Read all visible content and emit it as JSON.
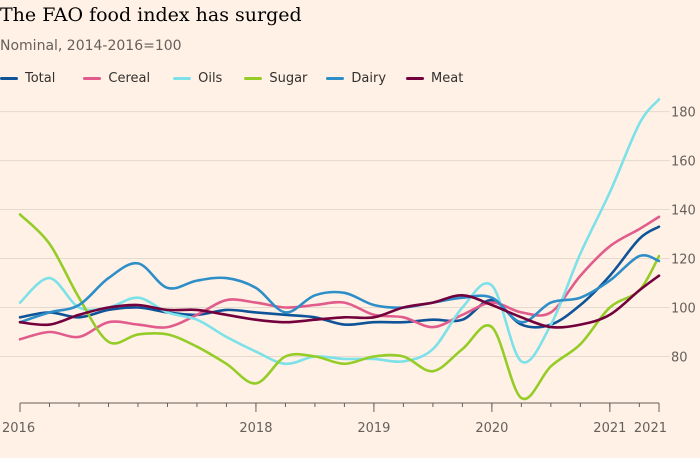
{
  "header": {
    "title": "The FAO food index has surged",
    "subtitle": "Nominal, 2014-2016=100"
  },
  "chart_data": {
    "type": "line",
    "title": "The FAO food index has surged",
    "subtitle": "Nominal, 2014-2016=100",
    "xlabel": "",
    "ylabel": "",
    "x_start": "2016-01",
    "x_end": "2021-06",
    "x_ticks": [
      {
        "month": "2016-01",
        "label": "2016"
      },
      {
        "month": "2018-01",
        "label": "2018"
      },
      {
        "month": "2019-01",
        "label": "2019"
      },
      {
        "month": "2020-01",
        "label": "2020"
      },
      {
        "month": "2021-01",
        "label": "2021"
      },
      {
        "month": "2021-06",
        "label": "2021"
      }
    ],
    "y_ticks": [
      80,
      100,
      120,
      140,
      160,
      180
    ],
    "ylim": [
      61,
      188
    ],
    "grid": "horizontal",
    "y_axis_side": "right",
    "legend_position": "top-left",
    "series": [
      {
        "name": "Total",
        "color": "#0F5499",
        "values": [
          {
            "date": "2016-01",
            "value": 96
          },
          {
            "date": "2016-04",
            "value": 98
          },
          {
            "date": "2016-07",
            "value": 96
          },
          {
            "date": "2016-10",
            "value": 99
          },
          {
            "date": "2017-01",
            "value": 100
          },
          {
            "date": "2017-04",
            "value": 98
          },
          {
            "date": "2017-07",
            "value": 97
          },
          {
            "date": "2017-10",
            "value": 99
          },
          {
            "date": "2018-01",
            "value": 98
          },
          {
            "date": "2018-04",
            "value": 97
          },
          {
            "date": "2018-07",
            "value": 96
          },
          {
            "date": "2018-10",
            "value": 93
          },
          {
            "date": "2019-01",
            "value": 94
          },
          {
            "date": "2019-04",
            "value": 94
          },
          {
            "date": "2019-07",
            "value": 95
          },
          {
            "date": "2019-10",
            "value": 95
          },
          {
            "date": "2020-01",
            "value": 103
          },
          {
            "date": "2020-04",
            "value": 93
          },
          {
            "date": "2020-07",
            "value": 93
          },
          {
            "date": "2020-10",
            "value": 101
          },
          {
            "date": "2021-01",
            "value": 113
          },
          {
            "date": "2021-04",
            "value": 128
          },
          {
            "date": "2021-06",
            "value": 133
          }
        ]
      },
      {
        "name": "Cereal",
        "color": "#E15C8C",
        "values": [
          {
            "date": "2016-01",
            "value": 87
          },
          {
            "date": "2016-04",
            "value": 90
          },
          {
            "date": "2016-07",
            "value": 88
          },
          {
            "date": "2016-10",
            "value": 94
          },
          {
            "date": "2017-01",
            "value": 93
          },
          {
            "date": "2017-04",
            "value": 92
          },
          {
            "date": "2017-07",
            "value": 97
          },
          {
            "date": "2017-10",
            "value": 103
          },
          {
            "date": "2018-01",
            "value": 102
          },
          {
            "date": "2018-04",
            "value": 100
          },
          {
            "date": "2018-07",
            "value": 101
          },
          {
            "date": "2018-10",
            "value": 102
          },
          {
            "date": "2019-01",
            "value": 97
          },
          {
            "date": "2019-04",
            "value": 96
          },
          {
            "date": "2019-07",
            "value": 92
          },
          {
            "date": "2019-10",
            "value": 97
          },
          {
            "date": "2020-01",
            "value": 102
          },
          {
            "date": "2020-04",
            "value": 98
          },
          {
            "date": "2020-07",
            "value": 98
          },
          {
            "date": "2020-10",
            "value": 113
          },
          {
            "date": "2021-01",
            "value": 125
          },
          {
            "date": "2021-04",
            "value": 132
          },
          {
            "date": "2021-06",
            "value": 137
          }
        ]
      },
      {
        "name": "Oils",
        "color": "#7CE1E8",
        "values": [
          {
            "date": "2016-01",
            "value": 102
          },
          {
            "date": "2016-04",
            "value": 112
          },
          {
            "date": "2016-07",
            "value": 100
          },
          {
            "date": "2016-10",
            "value": 100
          },
          {
            "date": "2017-01",
            "value": 104
          },
          {
            "date": "2017-04",
            "value": 98
          },
          {
            "date": "2017-07",
            "value": 95
          },
          {
            "date": "2017-10",
            "value": 88
          },
          {
            "date": "2018-01",
            "value": 82
          },
          {
            "date": "2018-04",
            "value": 77
          },
          {
            "date": "2018-07",
            "value": 80
          },
          {
            "date": "2018-10",
            "value": 79
          },
          {
            "date": "2019-01",
            "value": 79
          },
          {
            "date": "2019-04",
            "value": 78
          },
          {
            "date": "2019-07",
            "value": 83
          },
          {
            "date": "2019-10",
            "value": 100
          },
          {
            "date": "2020-01",
            "value": 109
          },
          {
            "date": "2020-04",
            "value": 78
          },
          {
            "date": "2020-07",
            "value": 93
          },
          {
            "date": "2020-10",
            "value": 122
          },
          {
            "date": "2021-01",
            "value": 147
          },
          {
            "date": "2021-04",
            "value": 175
          },
          {
            "date": "2021-06",
            "value": 185
          }
        ]
      },
      {
        "name": "Sugar",
        "color": "#96CC28",
        "values": [
          {
            "date": "2016-01",
            "value": 138
          },
          {
            "date": "2016-04",
            "value": 126
          },
          {
            "date": "2016-07",
            "value": 104
          },
          {
            "date": "2016-10",
            "value": 86
          },
          {
            "date": "2017-01",
            "value": 89
          },
          {
            "date": "2017-04",
            "value": 89
          },
          {
            "date": "2017-07",
            "value": 84
          },
          {
            "date": "2017-10",
            "value": 77
          },
          {
            "date": "2018-01",
            "value": 69
          },
          {
            "date": "2018-04",
            "value": 80
          },
          {
            "date": "2018-07",
            "value": 80
          },
          {
            "date": "2018-10",
            "value": 77
          },
          {
            "date": "2019-01",
            "value": 80
          },
          {
            "date": "2019-04",
            "value": 80
          },
          {
            "date": "2019-07",
            "value": 74
          },
          {
            "date": "2019-10",
            "value": 83
          },
          {
            "date": "2020-01",
            "value": 92
          },
          {
            "date": "2020-04",
            "value": 63
          },
          {
            "date": "2020-07",
            "value": 76
          },
          {
            "date": "2020-10",
            "value": 85
          },
          {
            "date": "2021-01",
            "value": 100
          },
          {
            "date": "2021-04",
            "value": 107
          },
          {
            "date": "2021-06",
            "value": 121
          }
        ]
      },
      {
        "name": "Dairy",
        "color": "#2E8EC7",
        "values": [
          {
            "date": "2016-01",
            "value": 94
          },
          {
            "date": "2016-04",
            "value": 98
          },
          {
            "date": "2016-07",
            "value": 101
          },
          {
            "date": "2016-10",
            "value": 112
          },
          {
            "date": "2017-01",
            "value": 118
          },
          {
            "date": "2017-04",
            "value": 108
          },
          {
            "date": "2017-07",
            "value": 111
          },
          {
            "date": "2017-10",
            "value": 112
          },
          {
            "date": "2018-01",
            "value": 108
          },
          {
            "date": "2018-04",
            "value": 98
          },
          {
            "date": "2018-07",
            "value": 105
          },
          {
            "date": "2018-10",
            "value": 106
          },
          {
            "date": "2019-01",
            "value": 101
          },
          {
            "date": "2019-04",
            "value": 100
          },
          {
            "date": "2019-07",
            "value": 102
          },
          {
            "date": "2019-10",
            "value": 104
          },
          {
            "date": "2020-01",
            "value": 104
          },
          {
            "date": "2020-04",
            "value": 94
          },
          {
            "date": "2020-07",
            "value": 102
          },
          {
            "date": "2020-10",
            "value": 104
          },
          {
            "date": "2021-01",
            "value": 111
          },
          {
            "date": "2021-04",
            "value": 121
          },
          {
            "date": "2021-06",
            "value": 119
          }
        ]
      },
      {
        "name": "Meat",
        "color": "#73003C",
        "values": [
          {
            "date": "2016-01",
            "value": 94
          },
          {
            "date": "2016-04",
            "value": 93
          },
          {
            "date": "2016-07",
            "value": 97
          },
          {
            "date": "2016-10",
            "value": 100
          },
          {
            "date": "2017-01",
            "value": 101
          },
          {
            "date": "2017-04",
            "value": 99
          },
          {
            "date": "2017-07",
            "value": 99
          },
          {
            "date": "2017-10",
            "value": 97
          },
          {
            "date": "2018-01",
            "value": 95
          },
          {
            "date": "2018-04",
            "value": 94
          },
          {
            "date": "2018-07",
            "value": 95
          },
          {
            "date": "2018-10",
            "value": 96
          },
          {
            "date": "2019-01",
            "value": 96
          },
          {
            "date": "2019-04",
            "value": 100
          },
          {
            "date": "2019-07",
            "value": 102
          },
          {
            "date": "2019-10",
            "value": 105
          },
          {
            "date": "2020-01",
            "value": 101
          },
          {
            "date": "2020-04",
            "value": 96
          },
          {
            "date": "2020-07",
            "value": 92
          },
          {
            "date": "2020-10",
            "value": 93
          },
          {
            "date": "2021-01",
            "value": 97
          },
          {
            "date": "2021-04",
            "value": 107
          },
          {
            "date": "2021-06",
            "value": 113
          }
        ]
      }
    ]
  }
}
